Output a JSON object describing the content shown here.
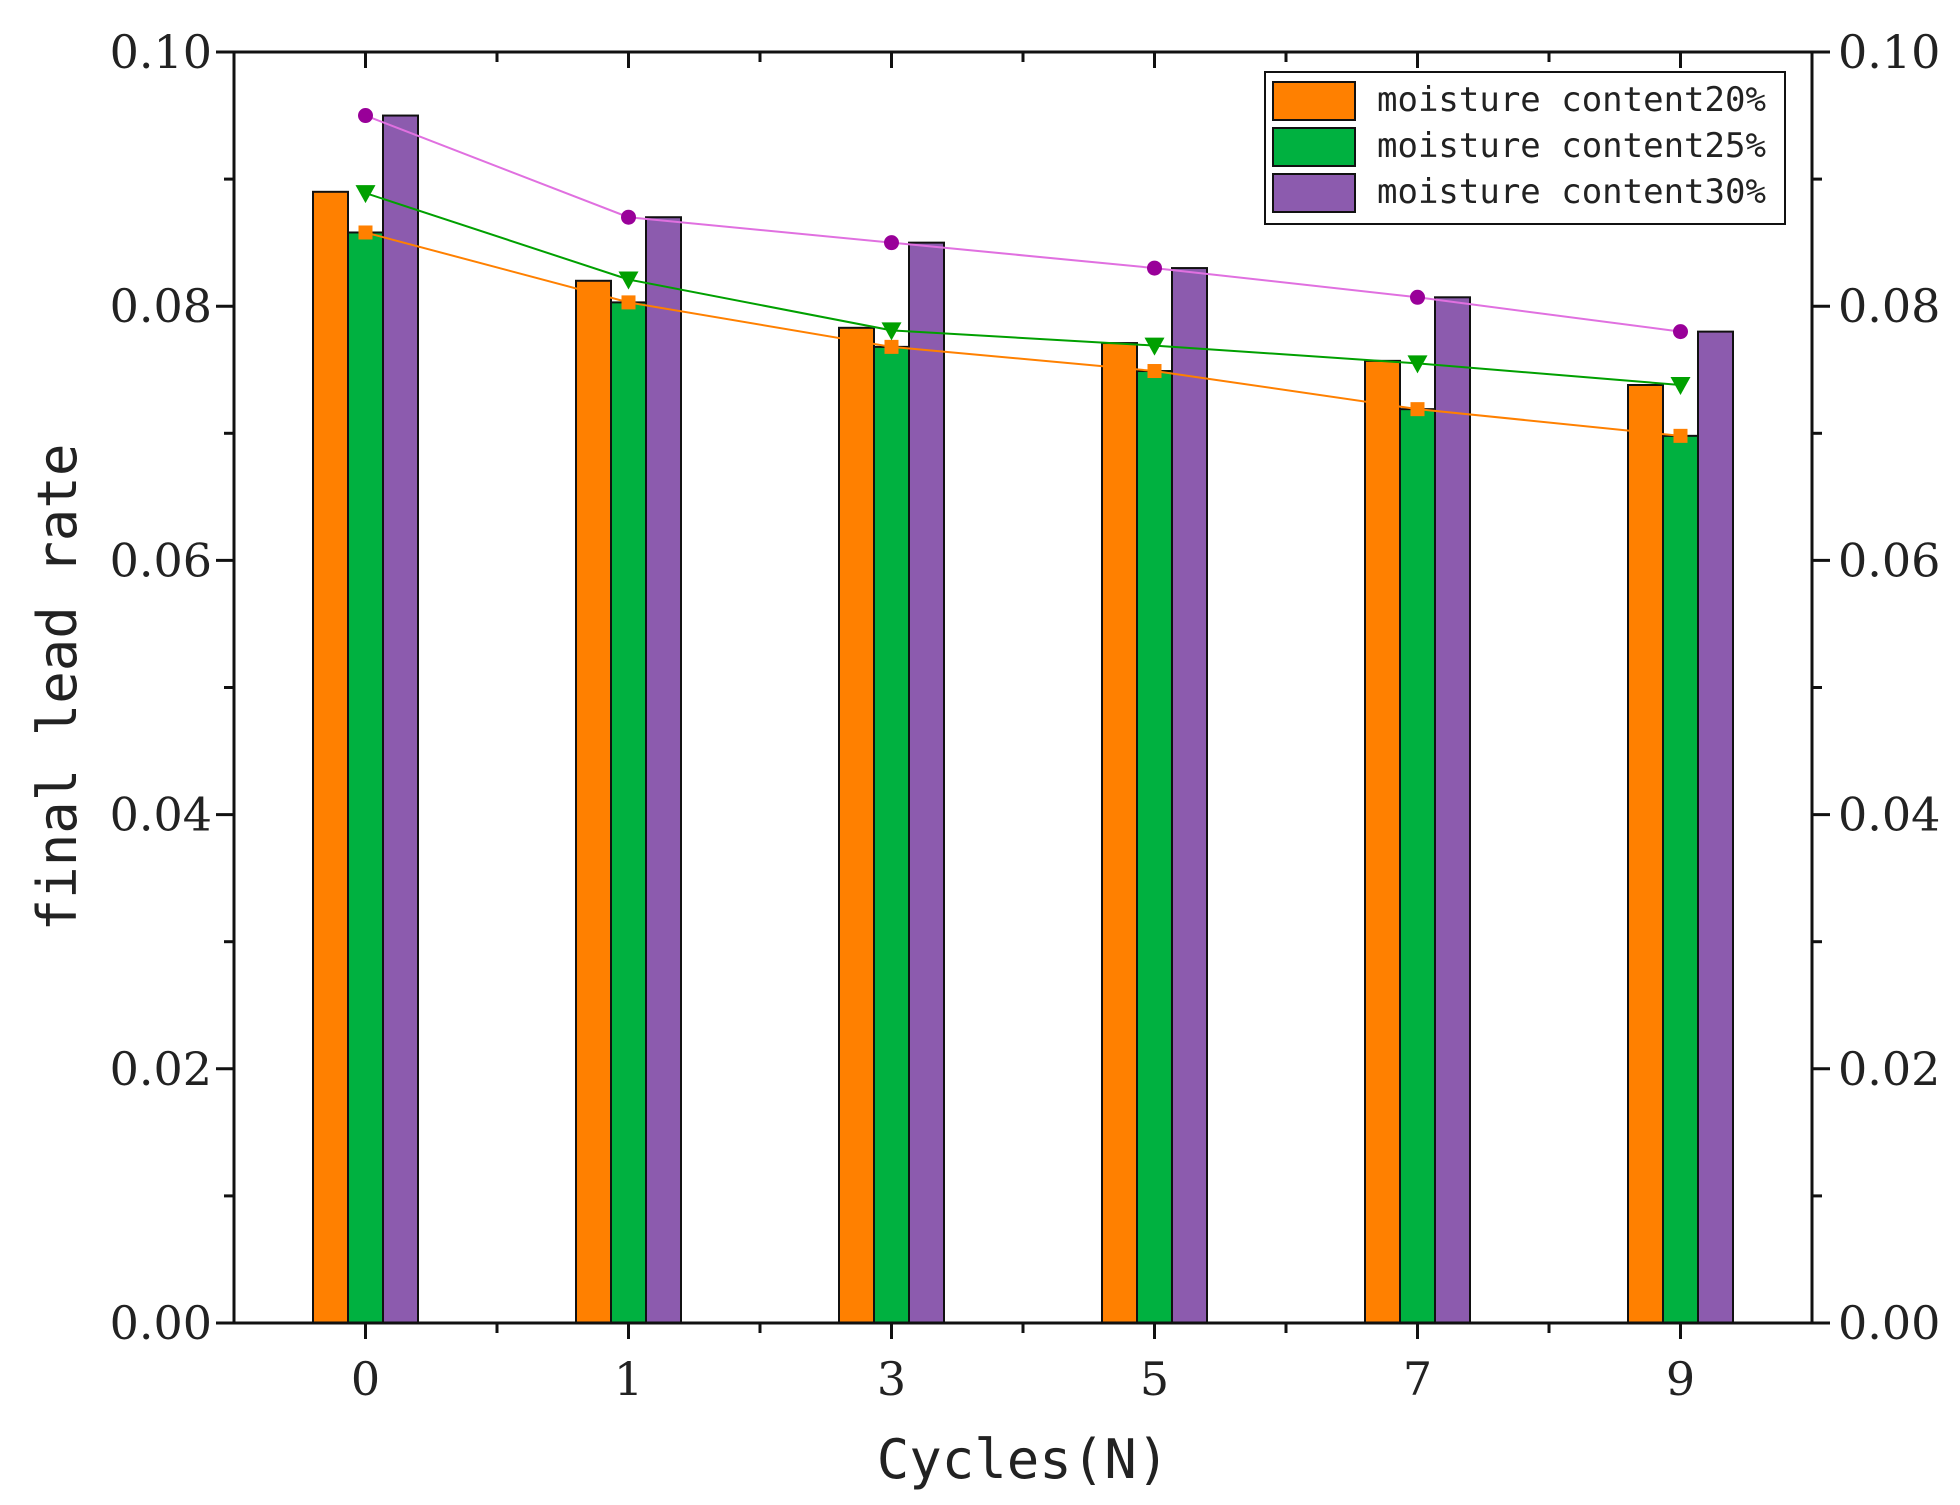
{
  "chart_data": {
    "type": "bar",
    "categories": [
      "0",
      "1",
      "3",
      "5",
      "7",
      "9"
    ],
    "xlabel": "Cycles(N)",
    "ylabel": "final lead rate",
    "ylim": [
      0,
      0.1
    ],
    "yticks": [
      "0.00",
      "0.02",
      "0.04",
      "0.06",
      "0.08",
      "0.10"
    ],
    "right_axis": true,
    "legend_position": "top-right",
    "grid": false,
    "series": [
      {
        "name": "moisture content20%",
        "color": "#FF8000",
        "line_color": "#FF8000",
        "marker": "square",
        "values": [
          0.089,
          0.082,
          0.0783,
          0.0771,
          0.0757,
          0.0738
        ],
        "line_values": [
          0.0858,
          0.0803,
          0.0768,
          0.0749,
          0.0719,
          0.0698
        ]
      },
      {
        "name": "moisture content25%",
        "color": "#00B140",
        "line_color": "#00A000",
        "marker": "triangle-down",
        "values": [
          0.0858,
          0.0803,
          0.0768,
          0.0749,
          0.0719,
          0.0698
        ],
        "line_values": [
          0.0889,
          0.0821,
          0.0781,
          0.0769,
          0.0755,
          0.0738
        ]
      },
      {
        "name": "moisture content30%",
        "color": "#8C5BAE",
        "line_color": "#E070E0",
        "marker": "circle",
        "marker_color": "#990099",
        "values": [
          0.095,
          0.087,
          0.085,
          0.083,
          0.0807,
          0.078
        ],
        "line_values": [
          0.095,
          0.087,
          0.085,
          0.083,
          0.0807,
          0.078
        ]
      }
    ]
  }
}
